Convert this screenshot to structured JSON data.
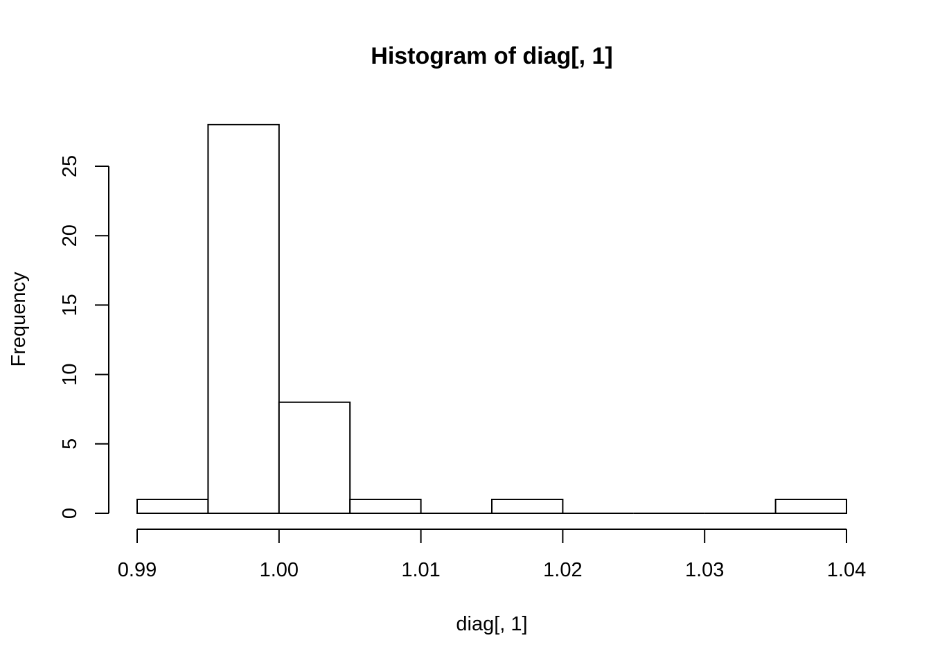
{
  "chart_data": {
    "type": "bar",
    "title": "Histogram of diag[, 1]",
    "xlabel": "diag[, 1]",
    "ylabel": "Frequency",
    "bins": [
      {
        "from": 0.99,
        "to": 0.995,
        "count": 1
      },
      {
        "from": 0.995,
        "to": 1.0,
        "count": 28
      },
      {
        "from": 1.0,
        "to": 1.005,
        "count": 8
      },
      {
        "from": 1.005,
        "to": 1.01,
        "count": 1
      },
      {
        "from": 1.01,
        "to": 1.015,
        "count": 0
      },
      {
        "from": 1.015,
        "to": 1.02,
        "count": 1
      },
      {
        "from": 1.02,
        "to": 1.025,
        "count": 0
      },
      {
        "from": 1.025,
        "to": 1.03,
        "count": 0
      },
      {
        "from": 1.03,
        "to": 1.035,
        "count": 0
      },
      {
        "from": 1.035,
        "to": 1.04,
        "count": 1
      }
    ],
    "xlim": [
      0.99,
      1.04
    ],
    "ylim": [
      0,
      28
    ],
    "x_ticks": [
      {
        "value": 0.99,
        "label": "0.99"
      },
      {
        "value": 1.0,
        "label": "1.00"
      },
      {
        "value": 1.01,
        "label": "1.01"
      },
      {
        "value": 1.02,
        "label": "1.02"
      },
      {
        "value": 1.03,
        "label": "1.03"
      },
      {
        "value": 1.04,
        "label": "1.04"
      }
    ],
    "y_ticks": [
      {
        "value": 0,
        "label": "0"
      },
      {
        "value": 5,
        "label": "5"
      },
      {
        "value": 10,
        "label": "10"
      },
      {
        "value": 15,
        "label": "15"
      },
      {
        "value": 20,
        "label": "20"
      },
      {
        "value": 25,
        "label": "25"
      }
    ],
    "grid": false
  }
}
